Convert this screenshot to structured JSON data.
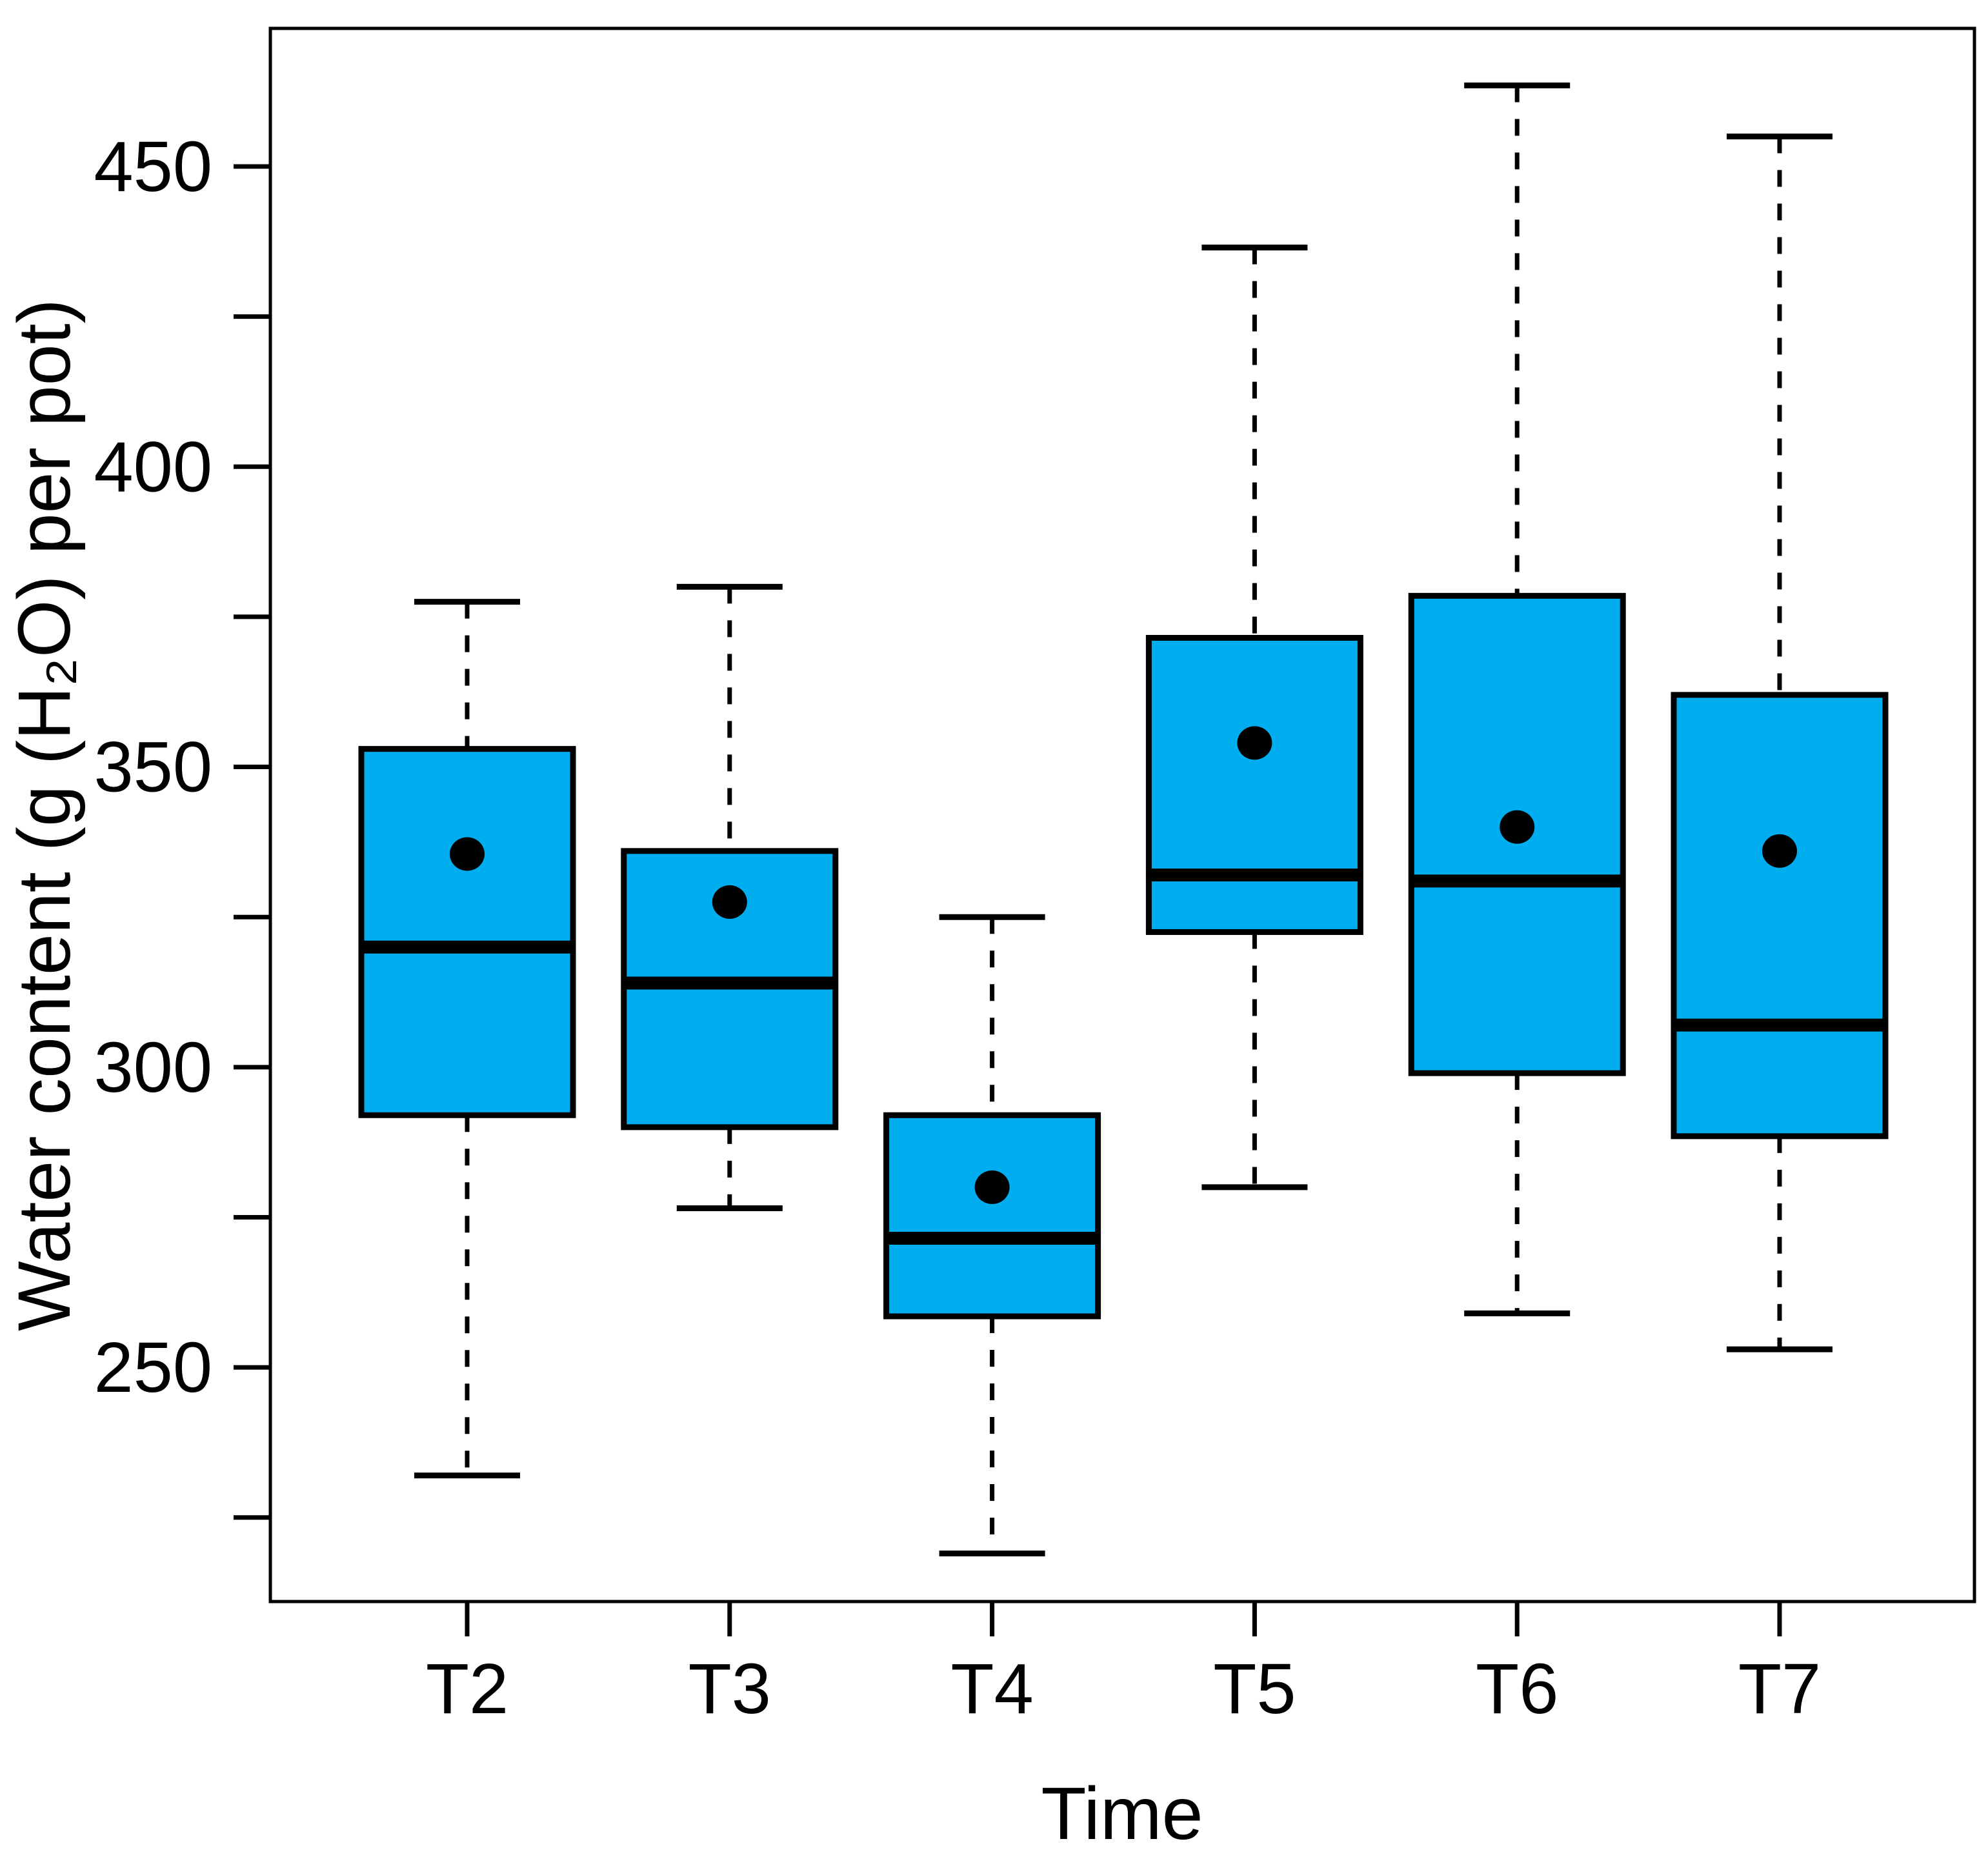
{
  "figure": {
    "y_axis_title": "Water content (g (H₂O) per pot)",
    "x_axis_title": "Time"
  },
  "chart_data": {
    "type": "boxplot",
    "title": "",
    "xlabel": "Time",
    "ylabel": "Water content (g (H₂O) per pot)",
    "categories": [
      "T2",
      "T3",
      "T4",
      "T5",
      "T6",
      "T7"
    ],
    "y_ticks_major": [
      250,
      300,
      350,
      400,
      450
    ],
    "y_ticks_minor": [
      225,
      275,
      325,
      375,
      425
    ],
    "ylim": [
      211,
      473
    ],
    "grid": false,
    "legend": "none",
    "series": [
      {
        "name": "T2",
        "whisker_low": 232,
        "q1": 292,
        "median": 320,
        "mean": 335.5,
        "q3": 353,
        "whisker_high": 377.5
      },
      {
        "name": "T3",
        "whisker_low": 276.5,
        "q1": 290,
        "median": 314,
        "mean": 327.5,
        "q3": 336,
        "whisker_high": 380
      },
      {
        "name": "T4",
        "whisker_low": 219,
        "q1": 258.5,
        "median": 271.5,
        "mean": 280,
        "q3": 292,
        "whisker_high": 325
      },
      {
        "name": "T5",
        "whisker_low": 280,
        "q1": 322.5,
        "median": 332,
        "mean": 354,
        "q3": 371.5,
        "whisker_high": 436.5
      },
      {
        "name": "T6",
        "whisker_low": 259,
        "q1": 299,
        "median": 331,
        "mean": 340,
        "q3": 378.5,
        "whisker_high": 463.5
      },
      {
        "name": "T7",
        "whisker_low": 253,
        "q1": 288.5,
        "median": 307,
        "mean": 336,
        "q3": 362,
        "whisker_high": 455
      }
    ],
    "colors": {
      "box_fill": "#00aeef",
      "stroke": "#000000",
      "background": "#ffffff"
    }
  }
}
